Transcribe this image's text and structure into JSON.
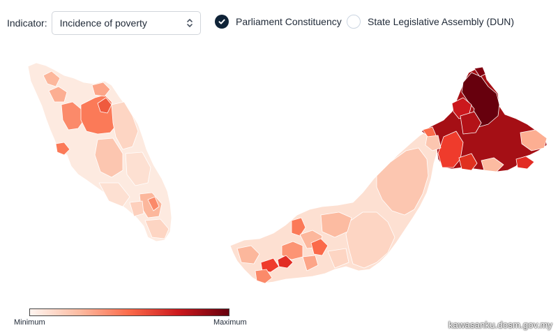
{
  "controls": {
    "indicator_label": "Indicator:",
    "indicator_value": "Incidence of poverty",
    "radio_parliament": {
      "label": "Parliament Constituency",
      "checked": true
    },
    "radio_dun": {
      "label": "State Legislative Assembly (DUN)",
      "checked": false
    }
  },
  "legend": {
    "min_label": "Minimum",
    "max_label": "Maximum",
    "colors": [
      "#fff5f0",
      "#fcbba1",
      "#fb6a4a",
      "#cb181d",
      "#67000d"
    ]
  },
  "source": "kawasanku.dosm.gov.my"
}
